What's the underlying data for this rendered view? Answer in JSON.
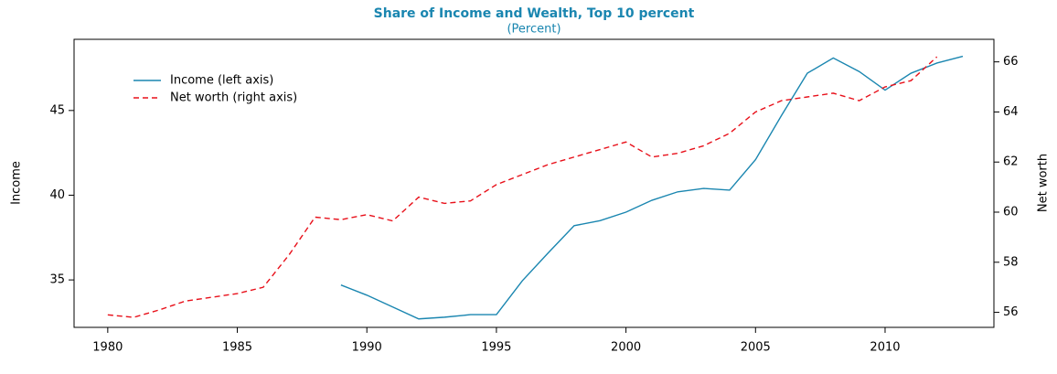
{
  "chart_data": {
    "type": "line",
    "title": "Share of Income and Wealth, Top 10 percent",
    "subtitle": "(Percent)",
    "y_label": "Income",
    "y2_label": "Net worth",
    "x": [
      1980,
      1981,
      1982,
      1983,
      1984,
      1985,
      1986,
      1987,
      1988,
      1989,
      1990,
      1991,
      1992,
      1993,
      1994,
      1995,
      1996,
      1997,
      1998,
      1999,
      2000,
      2001,
      2002,
      2003,
      2004,
      2005,
      2006,
      2007,
      2008,
      2009,
      2010,
      2011,
      2012,
      2013
    ],
    "series": [
      {
        "name": "Income (left axis)",
        "color": "#1a86b0",
        "dash": false,
        "values": [
          null,
          null,
          null,
          null,
          null,
          null,
          null,
          null,
          null,
          34.7,
          34.1,
          33.4,
          32.7,
          32.8,
          32.95,
          32.95,
          34.95,
          36.6,
          38.2,
          38.5,
          39.0,
          39.7,
          40.2,
          40.4,
          40.3,
          42.1,
          44.7,
          47.2,
          48.1,
          47.3,
          46.2,
          47.2,
          47.8,
          48.2
        ]
      },
      {
        "name": "Net worth (right axis)",
        "color": "#e8101a",
        "dash": true,
        "axis": "y2",
        "values": [
          55.9,
          55.8,
          56.1,
          56.45,
          56.6,
          56.75,
          57.0,
          58.3,
          59.8,
          59.7,
          59.9,
          59.65,
          60.6,
          60.35,
          60.45,
          61.1,
          61.5,
          61.9,
          62.2,
          62.5,
          62.8,
          62.2,
          62.35,
          62.65,
          63.15,
          64.0,
          64.45,
          64.6,
          64.75,
          64.45,
          65.0,
          65.25,
          66.2,
          null
        ]
      }
    ],
    "xlim": [
      1978.7,
      2014.2
    ],
    "xticks": [
      1980,
      1985,
      1990,
      1995,
      2000,
      2005,
      2010
    ],
    "ylim": [
      32.2,
      49.2
    ],
    "yticks": [
      35,
      40,
      45
    ],
    "y2lim": [
      55.4,
      66.9
    ],
    "y2ticks": [
      56,
      58,
      60,
      62,
      64,
      66
    ],
    "legend": "top-left"
  }
}
